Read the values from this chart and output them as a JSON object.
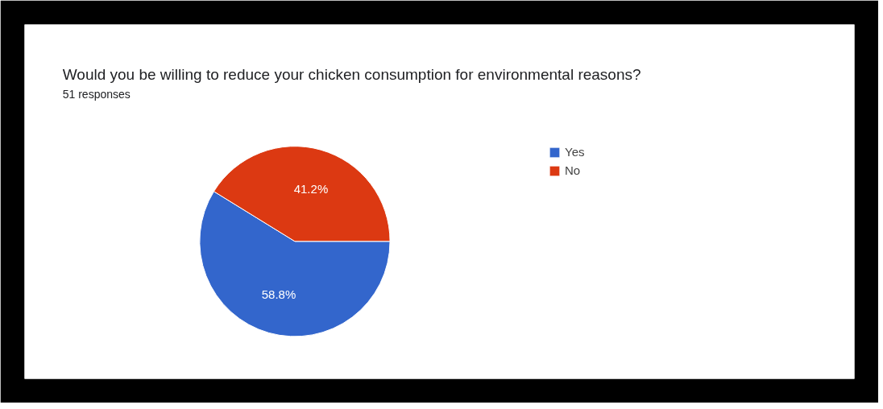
{
  "chart_data": {
    "type": "pie",
    "title": "Would you be willing to reduce your chicken consumption for environmental reasons?",
    "subtitle": "51 responses",
    "categories": [
      "Yes",
      "No"
    ],
    "values": [
      58.8,
      41.2
    ],
    "colors": [
      "#3366cc",
      "#dc3912"
    ],
    "value_labels": [
      "58.8%",
      "41.2%"
    ],
    "legend": "right"
  }
}
